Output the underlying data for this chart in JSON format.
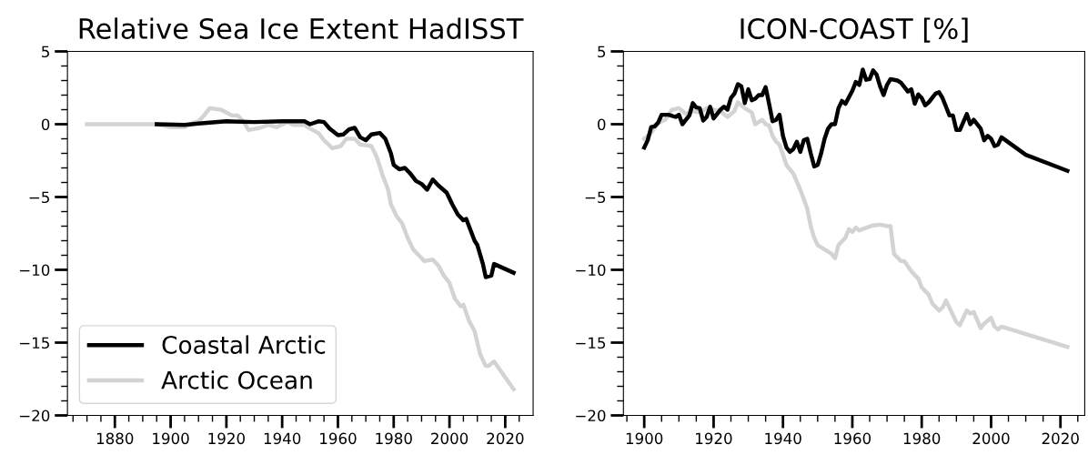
{
  "chart_data": [
    {
      "type": "line",
      "title": "Relative Sea Ice Extent HadISST",
      "legend": "bottom left",
      "grid": false,
      "marker": "none",
      "line_style": "solid",
      "xlim": [
        1863,
        2030
      ],
      "xticks": [
        {
          "value": 1865,
          "label": null
        },
        {
          "value": 1870,
          "label": null
        },
        {
          "value": 1875,
          "label": null
        },
        1880,
        {
          "value": 1885,
          "label": null
        },
        {
          "value": 1890,
          "label": null
        },
        {
          "value": 1895,
          "label": null
        },
        1900,
        {
          "value": 1905,
          "label": null
        },
        {
          "value": 1910,
          "label": null
        },
        {
          "value": 1915,
          "label": null
        },
        1920,
        {
          "value": 1925,
          "label": null
        },
        {
          "value": 1930,
          "label": null
        },
        {
          "value": 1935,
          "label": null
        },
        1940,
        {
          "value": 1945,
          "label": null
        },
        {
          "value": 1950,
          "label": null
        },
        {
          "value": 1955,
          "label": null
        },
        1960,
        {
          "value": 1965,
          "label": null
        },
        {
          "value": 1970,
          "label": null
        },
        {
          "value": 1975,
          "label": null
        },
        1980,
        {
          "value": 1985,
          "label": null
        },
        {
          "value": 1990,
          "label": null
        },
        {
          "value": 1995,
          "label": null
        },
        2000,
        {
          "value": 2005,
          "label": null
        },
        {
          "value": 2010,
          "label": null
        },
        {
          "value": 2015,
          "label": null
        },
        2020,
        {
          "value": 2025,
          "label": null
        }
      ],
      "ylim": [
        -20,
        5
      ],
      "yticks": [
        {
          "value": -20,
          "label": "−20"
        },
        {
          "value": -19,
          "label": null
        },
        {
          "value": -18,
          "label": null
        },
        {
          "value": -17,
          "label": null
        },
        {
          "value": -16,
          "label": null
        },
        {
          "value": -15,
          "label": "−15"
        },
        {
          "value": -14,
          "label": null
        },
        {
          "value": -13,
          "label": null
        },
        {
          "value": -12,
          "label": null
        },
        {
          "value": -11,
          "label": null
        },
        {
          "value": -10,
          "label": "−10"
        },
        {
          "value": -9,
          "label": null
        },
        {
          "value": -8,
          "label": null
        },
        {
          "value": -7,
          "label": null
        },
        {
          "value": -6,
          "label": null
        },
        {
          "value": -5,
          "label": "−5"
        },
        {
          "value": -4,
          "label": null
        },
        {
          "value": -3,
          "label": null
        },
        {
          "value": -2,
          "label": null
        },
        {
          "value": -1,
          "label": null
        },
        0,
        {
          "value": 1,
          "label": null
        },
        {
          "value": 2,
          "label": null
        },
        {
          "value": 3,
          "label": null
        },
        {
          "value": 4,
          "label": null
        },
        5
      ],
      "series": [
        {
          "name": "Coastal Arctic",
          "color": "#000000",
          "x": [
            1895,
            1905,
            1910,
            1920,
            1930,
            1940,
            1948,
            1950,
            1953,
            1955,
            1957,
            1960,
            1962,
            1964,
            1966,
            1968,
            1970,
            1972,
            1975,
            1977,
            1979,
            1980,
            1982,
            1984,
            1986,
            1988,
            1990,
            1992,
            1994,
            1996,
            1999,
            2001,
            2003,
            2005,
            2006,
            2009,
            2010,
            2012,
            2013,
            2015,
            2016,
            2023
          ],
          "values": [
            0,
            -0.05,
            0.05,
            0.2,
            0.15,
            0.2,
            0.2,
            0.0,
            0.2,
            0.15,
            -0.3,
            -0.75,
            -0.7,
            -0.35,
            -0.25,
            -0.9,
            -1.1,
            -0.7,
            -0.6,
            -1.0,
            -2.0,
            -2.8,
            -3.1,
            -3.0,
            -3.4,
            -3.9,
            -4.1,
            -4.5,
            -3.8,
            -4.2,
            -4.7,
            -5.5,
            -6.2,
            -6.6,
            -6.5,
            -8.0,
            -8.3,
            -9.6,
            -10.5,
            -10.4,
            -9.6,
            -10.2
          ]
        },
        {
          "name": "Arctic Ocean",
          "color": "#d3d3d3",
          "x": [
            1870,
            1895,
            1900,
            1905,
            1908,
            1910,
            1912,
            1914,
            1918,
            1922,
            1924,
            1926,
            1928,
            1932,
            1935,
            1938,
            1942,
            1944,
            1948,
            1950,
            1953,
            1955,
            1958,
            1961,
            1963,
            1966,
            1968,
            1972,
            1974,
            1976,
            1978,
            1979,
            1981,
            1983,
            1985,
            1987,
            1989,
            1991,
            1994,
            1996,
            1998,
            2000,
            2002,
            2004,
            2005,
            2007,
            2009,
            2011,
            2013,
            2014,
            2016,
            2023
          ],
          "values": [
            0,
            0,
            -0.2,
            -0.2,
            0.1,
            0.2,
            0.6,
            1.1,
            1.0,
            0.6,
            0.6,
            0.2,
            -0.4,
            -0.25,
            -0.05,
            -0.2,
            0.15,
            -0.05,
            -0.05,
            -0.3,
            -0.6,
            -1.1,
            -1.65,
            -1.5,
            -1.0,
            -1.0,
            -1.4,
            -1.5,
            -2.3,
            -3.5,
            -4.5,
            -5.5,
            -6.3,
            -6.8,
            -7.8,
            -8.6,
            -9.0,
            -9.4,
            -9.3,
            -9.7,
            -10.4,
            -10.9,
            -12.0,
            -12.5,
            -12.4,
            -13.5,
            -14.2,
            -15.8,
            -16.6,
            -16.6,
            -16.3,
            -18.2
          ]
        }
      ]
    },
    {
      "type": "line",
      "title": "ICON-COAST [%]",
      "legend": false,
      "grid": false,
      "marker": "none",
      "line_style": "solid",
      "xlim": [
        1894,
        2027
      ],
      "xticks": [
        {
          "value": 1895,
          "label": null
        },
        1900,
        {
          "value": 1905,
          "label": null
        },
        {
          "value": 1910,
          "label": null
        },
        {
          "value": 1915,
          "label": null
        },
        1920,
        {
          "value": 1925,
          "label": null
        },
        {
          "value": 1930,
          "label": null
        },
        {
          "value": 1935,
          "label": null
        },
        1940,
        {
          "value": 1945,
          "label": null
        },
        {
          "value": 1950,
          "label": null
        },
        {
          "value": 1955,
          "label": null
        },
        1960,
        {
          "value": 1965,
          "label": null
        },
        {
          "value": 1970,
          "label": null
        },
        {
          "value": 1975,
          "label": null
        },
        1980,
        {
          "value": 1985,
          "label": null
        },
        {
          "value": 1990,
          "label": null
        },
        {
          "value": 1995,
          "label": null
        },
        2000,
        {
          "value": 2005,
          "label": null
        },
        {
          "value": 2010,
          "label": null
        },
        {
          "value": 2015,
          "label": null
        },
        2020,
        {
          "value": 2025,
          "label": null
        }
      ],
      "ylim": [
        -20,
        5
      ],
      "yticks": [
        {
          "value": -20,
          "label": "−20"
        },
        {
          "value": -19,
          "label": null
        },
        {
          "value": -18,
          "label": null
        },
        {
          "value": -17,
          "label": null
        },
        {
          "value": -16,
          "label": null
        },
        {
          "value": -15,
          "label": "−15"
        },
        {
          "value": -14,
          "label": null
        },
        {
          "value": -13,
          "label": null
        },
        {
          "value": -12,
          "label": null
        },
        {
          "value": -11,
          "label": null
        },
        {
          "value": -10,
          "label": "−10"
        },
        {
          "value": -9,
          "label": null
        },
        {
          "value": -8,
          "label": null
        },
        {
          "value": -7,
          "label": null
        },
        {
          "value": -6,
          "label": null
        },
        {
          "value": -5,
          "label": "−5"
        },
        {
          "value": -4,
          "label": null
        },
        {
          "value": -3,
          "label": null
        },
        {
          "value": -2,
          "label": null
        },
        {
          "value": -1,
          "label": null
        },
        0,
        {
          "value": 1,
          "label": null
        },
        {
          "value": 2,
          "label": null
        },
        {
          "value": 3,
          "label": null
        },
        {
          "value": 4,
          "label": null
        },
        5
      ],
      "series": [
        {
          "color": "#000000",
          "x": [
            1900,
            1901,
            1902,
            1903,
            1904,
            1905,
            1907,
            1909,
            1910,
            1911,
            1913,
            1914,
            1915,
            1916,
            1917,
            1918,
            1919,
            1920,
            1922,
            1923,
            1924,
            1925,
            1926,
            1927,
            1928,
            1929,
            1930,
            1931,
            1932,
            1933,
            1934,
            1935,
            1936,
            1937,
            1938,
            1939,
            1940,
            1941,
            1942,
            1943,
            1944,
            1945,
            1946,
            1947,
            1948,
            1949,
            1950,
            1951,
            1952,
            1953,
            1954,
            1955,
            1956,
            1957,
            1958,
            1960,
            1961,
            1962,
            1963,
            1964,
            1965,
            1966,
            1967,
            1968,
            1969,
            1970,
            1971,
            1973,
            1974,
            1976,
            1977,
            1978,
            1979,
            1980,
            1981,
            1982,
            1984,
            1985,
            1986,
            1988,
            1989,
            1990,
            1991,
            1993,
            1994,
            1995,
            1997,
            1998,
            1999,
            2000,
            2001,
            2002,
            2003,
            2010,
            2022
          ],
          "values": [
            -1.6,
            -1.1,
            -0.2,
            -0.15,
            0.1,
            0.65,
            0.65,
            0.5,
            0.65,
            0.0,
            0.6,
            1.45,
            1.15,
            1.1,
            0.25,
            0.5,
            1.2,
            0.4,
            1.0,
            1.2,
            1.0,
            1.8,
            2.1,
            2.75,
            2.6,
            1.45,
            2.4,
            1.65,
            1.75,
            2.0,
            2.0,
            2.55,
            1.4,
            0.2,
            0.3,
            0.65,
            -0.8,
            -1.6,
            -1.9,
            -1.7,
            -1.2,
            -1.9,
            -1.1,
            -1.0,
            -2.0,
            -2.9,
            -2.8,
            -2.0,
            -1.0,
            -0.3,
            0.0,
            0.0,
            1.1,
            1.6,
            1.4,
            2.3,
            2.9,
            2.7,
            3.75,
            3.05,
            3.1,
            3.7,
            3.4,
            2.6,
            2.0,
            2.7,
            3.1,
            3.0,
            2.85,
            2.25,
            2.4,
            1.4,
            2.05,
            1.8,
            1.3,
            1.5,
            2.1,
            2.2,
            1.8,
            0.6,
            0.6,
            -0.4,
            -0.4,
            0.7,
            0.0,
            0.3,
            -0.3,
            -1.1,
            -0.8,
            -1.0,
            -1.5,
            -1.4,
            -0.9,
            -2.1,
            -3.2
          ]
        },
        {
          "color": "#d3d3d3",
          "x": [
            1900,
            1902,
            1904,
            1906,
            1908,
            1910,
            1912,
            1914,
            1916,
            1918,
            1920,
            1922,
            1924,
            1926,
            1927,
            1929,
            1931,
            1932,
            1934,
            1935,
            1936,
            1937,
            1938,
            1939,
            1941,
            1943,
            1945,
            1947,
            1948,
            1949,
            1950,
            1952,
            1954,
            1955,
            1956,
            1958,
            1959,
            1960,
            1961,
            1962,
            1963,
            1966,
            1968,
            1970,
            1971,
            1972,
            1974,
            1975,
            1977,
            1979,
            1980,
            1982,
            1983,
            1985,
            1986,
            1987,
            1989,
            1990,
            1991,
            1993,
            1994,
            1995,
            1997,
            1998,
            2000,
            2001,
            2002,
            2003,
            2022
          ],
          "values": [
            -1.0,
            -0.6,
            0.1,
            0.3,
            1.0,
            1.1,
            0.7,
            0.9,
            0.8,
            1.1,
            1.0,
            0.9,
            0.5,
            0.9,
            1.5,
            1.1,
            0.8,
            0.0,
            0.3,
            0.0,
            -0.1,
            -0.8,
            -1.2,
            -1.4,
            -2.8,
            -3.4,
            -4.5,
            -5.8,
            -7.0,
            -7.8,
            -8.3,
            -8.6,
            -8.9,
            -9.2,
            -8.3,
            -7.8,
            -7.2,
            -7.4,
            -7.1,
            -7.3,
            -7.2,
            -6.95,
            -6.9,
            -7.0,
            -7.0,
            -8.9,
            -9.4,
            -9.4,
            -10.1,
            -10.6,
            -11.2,
            -11.7,
            -12.3,
            -12.8,
            -12.6,
            -12.1,
            -13.1,
            -13.6,
            -13.8,
            -12.8,
            -13.0,
            -12.9,
            -14.0,
            -13.7,
            -13.3,
            -13.9,
            -14.1,
            -13.9,
            -15.3
          ]
        }
      ]
    }
  ]
}
